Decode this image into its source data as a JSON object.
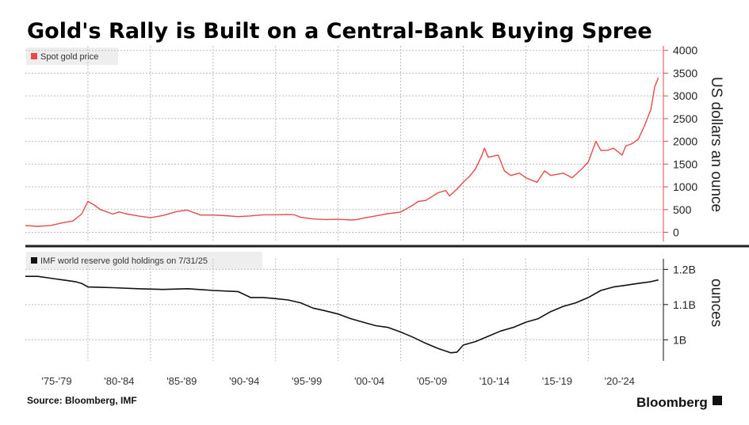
{
  "chart_data": [
    {
      "type": "line",
      "title": "Gold's Rally is Built on a Central-Bank Buying Spree",
      "source": "Source: Bloomberg, IMF",
      "brand": "Bloomberg",
      "ylabel": "US dollars an ounce",
      "ylim": [
        -200,
        4100
      ],
      "yticks": [
        0,
        500,
        1000,
        1500,
        2000,
        2500,
        3000,
        3500,
        4000
      ],
      "x_categories": [
        "'75-'79",
        "'80-'84",
        "'85-'89",
        "'90-'94",
        "'95-'99",
        "'00-'04",
        "'05-'09",
        "'10-'14",
        "'15-'19",
        "'20-'24"
      ],
      "xlim": [
        1975,
        2026
      ],
      "series": [
        {
          "name": "Spot gold price",
          "color": "#e84a4a",
          "x": [
            1975.0,
            1976.0,
            1977.0,
            1978.0,
            1978.8,
            1979.5,
            1980.0,
            1980.5,
            1981.0,
            1982.0,
            1982.5,
            1983.0,
            1984.0,
            1985.0,
            1986.0,
            1987.0,
            1987.9,
            1988.5,
            1989.0,
            1990.0,
            1991.0,
            1992.0,
            1993.0,
            1994.0,
            1995.0,
            1996.0,
            1996.5,
            1997.0,
            1998.0,
            1999.0,
            1999.7,
            2000.5,
            2001.0,
            2001.5,
            2002.0,
            2003.0,
            2004.0,
            2005.0,
            2006.0,
            2006.4,
            2007.0,
            2008.0,
            2008.6,
            2008.9,
            2009.5,
            2010.0,
            2010.5,
            2011.0,
            2011.5,
            2011.7,
            2012.0,
            2012.8,
            2013.3,
            2013.8,
            2014.5,
            2015.0,
            2015.9,
            2016.5,
            2017.0,
            2018.0,
            2018.7,
            2019.5,
            2020.0,
            2020.6,
            2021.0,
            2021.5,
            2022.0,
            2022.7,
            2023.0,
            2023.5,
            2024.0,
            2024.5,
            2025.0,
            2025.3,
            2025.6
          ],
          "y": [
            150,
            130,
            150,
            210,
            250,
            400,
            680,
            600,
            500,
            400,
            450,
            410,
            360,
            320,
            370,
            450,
            490,
            430,
            380,
            380,
            365,
            345,
            360,
            385,
            385,
            390,
            385,
            330,
            295,
            280,
            285,
            280,
            270,
            280,
            310,
            360,
            410,
            445,
            600,
            680,
            700,
            870,
            920,
            800,
            950,
            1100,
            1230,
            1400,
            1700,
            1850,
            1650,
            1700,
            1350,
            1250,
            1300,
            1200,
            1100,
            1350,
            1250,
            1300,
            1200,
            1400,
            1550,
            2000,
            1800,
            1800,
            1850,
            1700,
            1900,
            1950,
            2050,
            2350,
            2700,
            3200,
            3400
          ]
        },
        {
          "name": "IMF world reserve gold holdings on 7/31/25",
          "color": "#111111",
          "unit_label": "ounces",
          "ylim": [
            0.94,
            1.23
          ],
          "yticks": [
            1.0,
            1.1,
            1.2
          ],
          "ytick_labels": [
            "1B",
            "1.1B",
            "1.2B"
          ],
          "x": [
            1975.0,
            1976.0,
            1977.0,
            1978.0,
            1979.0,
            1979.5,
            1980.0,
            1982.0,
            1984.0,
            1986.0,
            1988.0,
            1990.0,
            1992.0,
            1993.0,
            1994.0,
            1995.0,
            1996.0,
            1997.0,
            1998.0,
            1999.0,
            2000.0,
            2001.0,
            2002.0,
            2003.0,
            2004.0,
            2005.0,
            2006.0,
            2007.0,
            2008.0,
            2009.0,
            2009.5,
            2010.0,
            2011.0,
            2012.0,
            2013.0,
            2014.0,
            2015.0,
            2016.0,
            2017.0,
            2018.0,
            2019.0,
            2020.0,
            2021.0,
            2022.0,
            2023.0,
            2024.0,
            2025.0,
            2025.6
          ],
          "y": [
            1.18,
            1.18,
            1.175,
            1.17,
            1.165,
            1.16,
            1.15,
            1.148,
            1.145,
            1.143,
            1.145,
            1.14,
            1.137,
            1.12,
            1.12,
            1.117,
            1.113,
            1.105,
            1.09,
            1.082,
            1.073,
            1.06,
            1.05,
            1.04,
            1.035,
            1.022,
            1.007,
            0.99,
            0.975,
            0.963,
            0.965,
            0.985,
            0.995,
            1.01,
            1.025,
            1.035,
            1.05,
            1.06,
            1.08,
            1.095,
            1.105,
            1.12,
            1.14,
            1.15,
            1.155,
            1.16,
            1.165,
            1.17
          ]
        }
      ]
    }
  ]
}
